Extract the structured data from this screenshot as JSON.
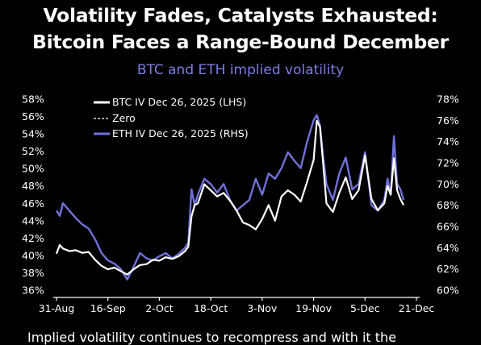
{
  "header": {
    "title_line1": "Volatility Fades, Catalysts Exhausted:",
    "title_line2": "Bitcoin Faces a Range-Bound December",
    "subtitle": "BTC and ETH implied volatility"
  },
  "caption": "Implied volatility continues to recompress and with it the",
  "colors": {
    "background": "#000000",
    "btc": "#ffffff",
    "eth": "#6f72d9",
    "subtitle": "#7a7fe0",
    "zero": "#ffffff"
  },
  "chart_data": {
    "type": "line",
    "legend_position": "top-left",
    "grid": false,
    "x_axis": {
      "ticks": [
        "31-Aug",
        "16-Sep",
        "2-Oct",
        "18-Oct",
        "3-Nov",
        "19-Nov",
        "5-Dec",
        "21-Dec"
      ],
      "range": [
        "2025-08-31",
        "2025-12-21"
      ]
    },
    "y_left": {
      "ticks": [
        "36%",
        "38%",
        "40%",
        "42%",
        "44%",
        "46%",
        "48%",
        "50%",
        "52%",
        "54%",
        "56%",
        "58%"
      ],
      "range": [
        36,
        58
      ]
    },
    "y_right": {
      "ticks": [
        "60%",
        "62%",
        "64%",
        "66%",
        "68%",
        "70%",
        "72%",
        "74%",
        "76%",
        "78%"
      ],
      "range": [
        60,
        78
      ]
    },
    "series": [
      {
        "name": "BTC IV Dec 26, 2025 (LHS)",
        "axis": "left",
        "style": "solid",
        "x": [
          "2025-08-31",
          "2025-09-01",
          "2025-09-02",
          "2025-09-04",
          "2025-09-06",
          "2025-09-08",
          "2025-09-10",
          "2025-09-12",
          "2025-09-14",
          "2025-09-16",
          "2025-09-18",
          "2025-09-20",
          "2025-09-22",
          "2025-09-24",
          "2025-09-26",
          "2025-09-28",
          "2025-09-30",
          "2025-10-02",
          "2025-10-04",
          "2025-10-06",
          "2025-10-08",
          "2025-10-10",
          "2025-10-11",
          "2025-10-12",
          "2025-10-13",
          "2025-10-14",
          "2025-10-16",
          "2025-10-18",
          "2025-10-20",
          "2025-10-22",
          "2025-10-24",
          "2025-10-26",
          "2025-10-28",
          "2025-10-30",
          "2025-11-01",
          "2025-11-03",
          "2025-11-05",
          "2025-11-07",
          "2025-11-09",
          "2025-11-11",
          "2025-11-13",
          "2025-11-15",
          "2025-11-17",
          "2025-11-19",
          "2025-11-20",
          "2025-11-21",
          "2025-11-22",
          "2025-11-23",
          "2025-11-25",
          "2025-11-27",
          "2025-11-29",
          "2025-12-01",
          "2025-12-03",
          "2025-12-05",
          "2025-12-07",
          "2025-12-09",
          "2025-12-11",
          "2025-12-12",
          "2025-12-13",
          "2025-12-14",
          "2025-12-15",
          "2025-12-16",
          "2025-12-17"
        ],
        "values": [
          40.2,
          41.2,
          40.8,
          40.5,
          40.6,
          40.3,
          40.4,
          39.5,
          38.8,
          38.4,
          38.6,
          38.2,
          37.8,
          38.4,
          38.9,
          39.0,
          39.5,
          39.4,
          39.8,
          39.6,
          39.9,
          40.5,
          41.0,
          44.5,
          45.8,
          46.0,
          48.2,
          47.5,
          46.8,
          47.2,
          46.3,
          45.2,
          43.8,
          43.5,
          43.0,
          44.2,
          45.8,
          44.0,
          46.8,
          47.5,
          47.0,
          46.2,
          48.5,
          51.0,
          55.5,
          54.8,
          50.5,
          46.0,
          45.0,
          47.2,
          49.0,
          46.5,
          47.5,
          51.5,
          46.5,
          45.2,
          46.0,
          48.0,
          47.0,
          51.2,
          47.5,
          46.5,
          45.8
        ]
      },
      {
        "name": "ETH IV Dec 26, 2025 (RHS)",
        "axis": "right",
        "style": "solid",
        "x": [
          "2025-08-31",
          "2025-09-01",
          "2025-09-02",
          "2025-09-04",
          "2025-09-06",
          "2025-09-08",
          "2025-09-10",
          "2025-09-12",
          "2025-09-14",
          "2025-09-16",
          "2025-09-18",
          "2025-09-20",
          "2025-09-22",
          "2025-09-24",
          "2025-09-26",
          "2025-09-28",
          "2025-09-30",
          "2025-10-02",
          "2025-10-04",
          "2025-10-06",
          "2025-10-08",
          "2025-10-10",
          "2025-10-11",
          "2025-10-12",
          "2025-10-13",
          "2025-10-14",
          "2025-10-16",
          "2025-10-18",
          "2025-10-20",
          "2025-10-22",
          "2025-10-24",
          "2025-10-26",
          "2025-10-28",
          "2025-10-30",
          "2025-11-01",
          "2025-11-03",
          "2025-11-05",
          "2025-11-07",
          "2025-11-09",
          "2025-11-11",
          "2025-11-13",
          "2025-11-15",
          "2025-11-17",
          "2025-11-19",
          "2025-11-20",
          "2025-11-21",
          "2025-11-22",
          "2025-11-23",
          "2025-11-25",
          "2025-11-27",
          "2025-11-29",
          "2025-12-01",
          "2025-12-03",
          "2025-12-05",
          "2025-12-07",
          "2025-12-09",
          "2025-12-11",
          "2025-12-12",
          "2025-12-13",
          "2025-12-14",
          "2025-12-15",
          "2025-12-16",
          "2025-12-17"
        ],
        "values": [
          67.5,
          67.0,
          68.2,
          67.5,
          66.8,
          66.2,
          65.8,
          64.8,
          63.5,
          62.8,
          62.5,
          62.0,
          61.0,
          62.2,
          63.5,
          63.0,
          62.8,
          63.2,
          63.5,
          63.0,
          63.4,
          64.0,
          64.5,
          69.5,
          68.0,
          69.0,
          70.5,
          70.0,
          69.2,
          70.0,
          68.5,
          67.5,
          68.0,
          68.5,
          70.5,
          69.0,
          71.0,
          70.5,
          71.5,
          73.0,
          72.2,
          71.5,
          74.0,
          76.0,
          76.5,
          75.5,
          72.5,
          70.0,
          68.5,
          71.0,
          72.5,
          69.5,
          70.0,
          73.0,
          68.0,
          67.5,
          68.5,
          70.5,
          69.0,
          74.5,
          70.0,
          69.5,
          68.5
        ]
      },
      {
        "name": "Zero",
        "axis": "left",
        "style": "dashed"
      }
    ]
  }
}
